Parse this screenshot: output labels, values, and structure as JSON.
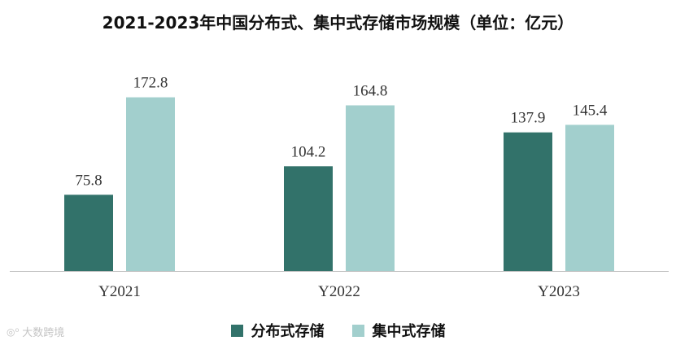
{
  "title": "2021-2023年中国分布式、集中式存储市场规模（单位：亿元）",
  "chart_data": {
    "type": "bar",
    "title": "2021-2023年中国分布式、集中式存储市场规模（单位：亿元）",
    "categories": [
      "Y2021",
      "Y2022",
      "Y2023"
    ],
    "series": [
      {
        "name": "分布式存储",
        "values": [
          75.8,
          104.2,
          137.9
        ],
        "color": "#32726a"
      },
      {
        "name": "集中式存储",
        "values": [
          172.8,
          164.8,
          145.4
        ],
        "color": "#a2cfcd"
      }
    ],
    "ylim": [
      0,
      200
    ],
    "grid": false,
    "legend": "bottom",
    "axis_color": "#bbbbbb"
  },
  "watermark": {
    "icon": "watermark-logo-icon",
    "text": "大数跨境"
  }
}
